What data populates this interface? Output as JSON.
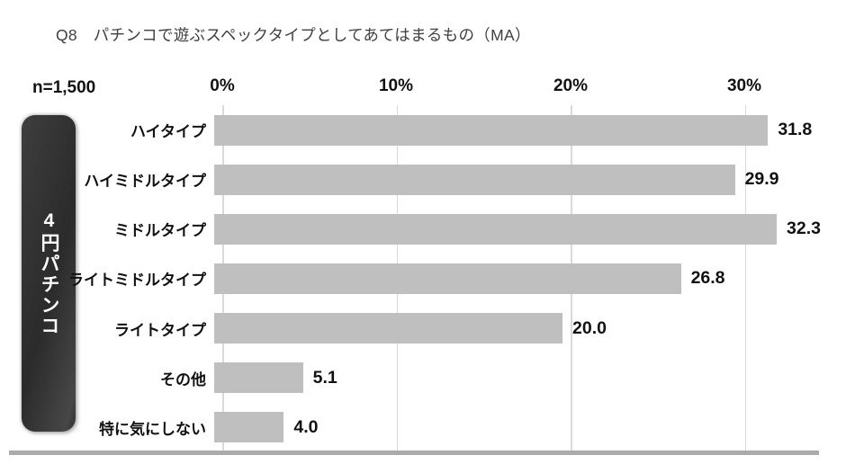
{
  "header": {
    "title": "Q8　パチンコで遊ぶスペックタイプとしてあてはまるもの（MA）",
    "sample_label": "n=1,500"
  },
  "group": {
    "label": "4円パチンコ"
  },
  "chart_data": {
    "type": "bar",
    "orientation": "horizontal",
    "title": "Q8　パチンコで遊ぶスペックタイプとしてあてはまるもの（MA）",
    "sample_size": "n=1,500",
    "group_label": "4円パチンコ",
    "categories": [
      "ハイタイプ",
      "ハイミドルタイプ",
      "ミドルタイプ",
      "ライトミドルタイプ",
      "ライトタイプ",
      "その他",
      "特に気にしない"
    ],
    "values": [
      31.8,
      29.9,
      32.3,
      26.8,
      20.0,
      5.1,
      4.0
    ],
    "value_labels": [
      "31.8",
      "29.9",
      "32.3",
      "26.8",
      "20.0",
      "5.1",
      "4.0"
    ],
    "x_ticks": [
      "0%",
      "10%",
      "20%",
      "30%"
    ],
    "x_tick_values": [
      0,
      10,
      20,
      30
    ],
    "xlim": [
      0,
      34
    ],
    "grid": true,
    "legend": false,
    "bar_color": "#bfbfbf",
    "gridline_color": "#d9d9d9",
    "divider_color": "#ababab"
  }
}
